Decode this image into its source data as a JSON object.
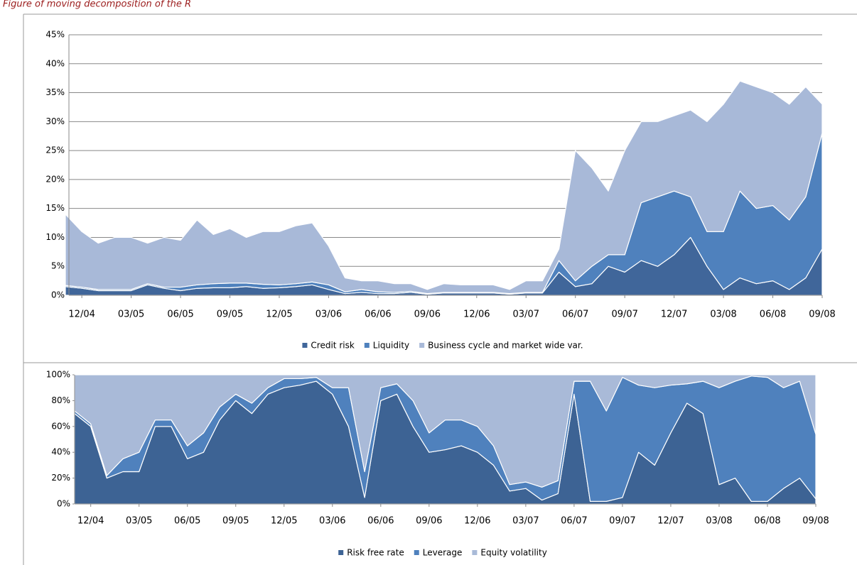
{
  "caption": "Figure of moving decomposition of the R",
  "chart_data": [
    {
      "type": "area",
      "stacked": true,
      "categories": [
        null,
        "12/04",
        null,
        null,
        "03/05",
        null,
        null,
        "06/05",
        null,
        null,
        "09/05",
        null,
        null,
        "12/05",
        null,
        null,
        "03/06",
        null,
        null,
        "06/06",
        null,
        null,
        "09/06",
        null,
        null,
        "12/06",
        null,
        null,
        "03/07",
        null,
        null,
        "06/07",
        null,
        null,
        "09/07",
        null,
        null,
        "12/07",
        null,
        null,
        "03/08",
        null,
        null,
        "06/08",
        null,
        null,
        "09/08"
      ],
      "ylim": [
        0,
        45
      ],
      "yticks": [
        {
          "value": 0,
          "label": "0%"
        },
        {
          "value": 5,
          "label": "5%"
        },
        {
          "value": 10,
          "label": "10%"
        },
        {
          "value": 15,
          "label": "15%"
        },
        {
          "value": 20,
          "label": "20%"
        },
        {
          "value": 25,
          "label": "25%"
        },
        {
          "value": 30,
          "label": "30%"
        },
        {
          "value": 35,
          "label": "35%"
        },
        {
          "value": 40,
          "label": "40%"
        },
        {
          "value": 45,
          "label": "45%"
        }
      ],
      "grid": true,
      "series": [
        {
          "name": "Credit risk",
          "color": "#40669a",
          "values": [
            1.5,
            1.2,
            0.8,
            0.8,
            0.8,
            1.8,
            1.2,
            0.8,
            1.2,
            1.3,
            1.3,
            1.5,
            1.2,
            1.3,
            1.5,
            1.8,
            1,
            0.3,
            0.5,
            0.3,
            0.3,
            0.5,
            0.2,
            0.4,
            0.4,
            0.4,
            0.4,
            0.2,
            0.4,
            0.4,
            4,
            1.5,
            2,
            5,
            4,
            6,
            5,
            7,
            10,
            5,
            1,
            3,
            2,
            2.5,
            1,
            3,
            8
          ]
        },
        {
          "name": "Liquidity",
          "color": "#4f81bd",
          "values": [
            0.2,
            0.2,
            0.2,
            0.2,
            0.2,
            0.2,
            0.2,
            0.6,
            0.6,
            0.7,
            0.8,
            0.6,
            0.7,
            0.5,
            0.5,
            0.5,
            0.8,
            0.3,
            0.5,
            0.3,
            0.2,
            0.2,
            0.1,
            0.1,
            0.1,
            0.1,
            0.1,
            0.1,
            0.1,
            0.1,
            2,
            1,
            3,
            2,
            3,
            10,
            12,
            11,
            7,
            6,
            10,
            15,
            13,
            13,
            12,
            14,
            20
          ]
        },
        {
          "name": "Business cycle and market wide var.",
          "color": "#a8b9d8",
          "values": [
            12.3,
            9.6,
            8,
            9,
            9,
            7,
            8.6,
            8.1,
            11.2,
            8.5,
            9.4,
            7.9,
            9.1,
            9.2,
            10,
            10.2,
            6.7,
            2.4,
            1.5,
            1.9,
            1.5,
            1.3,
            0.7,
            1.5,
            1.3,
            1.3,
            1.3,
            0.7,
            2,
            2,
            2,
            22.5,
            17,
            11,
            18,
            14,
            13,
            13,
            15,
            19,
            22,
            19,
            21,
            19.5,
            20,
            19,
            5
          ]
        }
      ]
    },
    {
      "type": "area",
      "stacked": true,
      "categories": [
        null,
        "12/04",
        null,
        null,
        "03/05",
        null,
        null,
        "06/05",
        null,
        null,
        "09/05",
        null,
        null,
        "12/05",
        null,
        null,
        "03/06",
        null,
        null,
        "06/06",
        null,
        null,
        "09/06",
        null,
        null,
        "12/06",
        null,
        null,
        "03/07",
        null,
        null,
        "06/07",
        null,
        null,
        "09/07",
        null,
        null,
        "12/07",
        null,
        null,
        "03/08",
        null,
        null,
        "06/08",
        null,
        null,
        "09/08"
      ],
      "ylim": [
        0,
        100
      ],
      "yticks": [
        {
          "value": 0,
          "label": "0%"
        },
        {
          "value": 20,
          "label": "20%"
        },
        {
          "value": 40,
          "label": "40%"
        },
        {
          "value": 60,
          "label": "60%"
        },
        {
          "value": 80,
          "label": "80%"
        },
        {
          "value": 100,
          "label": "100%"
        }
      ],
      "grid": false,
      "series": [
        {
          "name": "Risk free rate",
          "color": "#3d6394",
          "values": [
            70,
            60,
            20,
            25,
            25,
            60,
            60,
            35,
            40,
            65,
            80,
            70,
            85,
            90,
            92,
            95,
            85,
            60,
            5,
            80,
            85,
            60,
            40,
            42,
            45,
            40,
            30,
            10,
            12,
            3,
            8,
            85,
            2,
            2,
            5,
            40,
            30,
            55,
            78,
            70,
            15,
            20,
            2,
            2,
            12,
            20,
            4
          ]
        },
        {
          "name": "Leverage",
          "color": "#4f81bd",
          "values": [
            2,
            2,
            2,
            10,
            15,
            5,
            5,
            10,
            15,
            10,
            5,
            8,
            5,
            7,
            5,
            3,
            5,
            30,
            20,
            10,
            8,
            20,
            15,
            23,
            20,
            20,
            15,
            5,
            5,
            10,
            10,
            10,
            93,
            70,
            93,
            52,
            60,
            37,
            15,
            25,
            75,
            75,
            97,
            96,
            78,
            75,
            50
          ]
        },
        {
          "name": "Equity volatility",
          "color": "#a9bad8",
          "values": [
            28,
            38,
            78,
            65,
            60,
            35,
            35,
            55,
            45,
            25,
            15,
            22,
            10,
            3,
            3,
            2,
            10,
            10,
            75,
            10,
            7,
            20,
            45,
            35,
            35,
            40,
            55,
            85,
            83,
            87,
            82,
            5,
            5,
            28,
            2,
            8,
            10,
            8,
            7,
            5,
            10,
            5,
            1,
            2,
            10,
            5,
            46
          ]
        }
      ]
    }
  ]
}
